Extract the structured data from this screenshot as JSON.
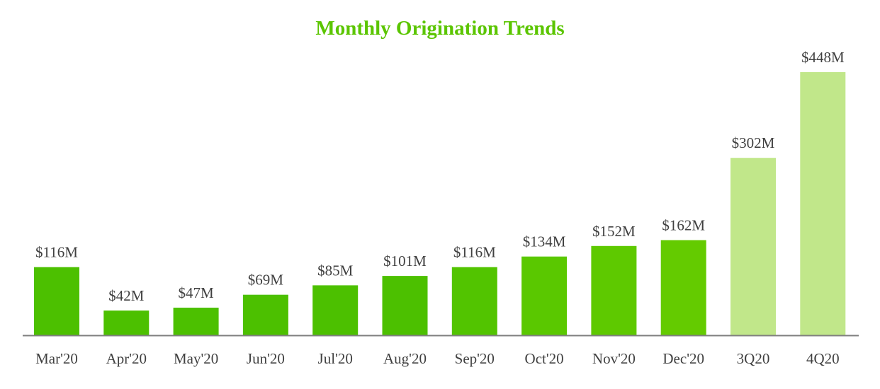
{
  "chart_data": {
    "type": "bar",
    "title": "Monthly Origination Trends",
    "xlabel": "",
    "ylabel": "",
    "categories": [
      "Mar'20",
      "Apr'20",
      "May'20",
      "Jun'20",
      "Jul'20",
      "Aug'20",
      "Sep'20",
      "Oct'20",
      "Nov'20",
      "Dec'20",
      "3Q20",
      "4Q20"
    ],
    "values": [
      116,
      42,
      47,
      69,
      85,
      101,
      116,
      134,
      152,
      162,
      302,
      448
    ],
    "data_labels": [
      "$116M",
      "$42M",
      "$47M",
      "$69M",
      "$85M",
      "$101M",
      "$116M",
      "$134M",
      "$152M",
      "$162M",
      "$302M",
      "$448M"
    ],
    "bar_colors": [
      "#4cc000",
      "#4cc000",
      "#4cc000",
      "#4cc000",
      "#4cc000",
      "#4cc000",
      "#52c400",
      "#5ac800",
      "#5ec900",
      "#64cb00",
      "#c1e78a",
      "#c1e78a"
    ],
    "ylim": [
      0,
      448
    ],
    "grid": false,
    "legend": "none"
  },
  "colors": {
    "title": "#5bc500",
    "axis": "#808080",
    "label_text": "#404040"
  }
}
